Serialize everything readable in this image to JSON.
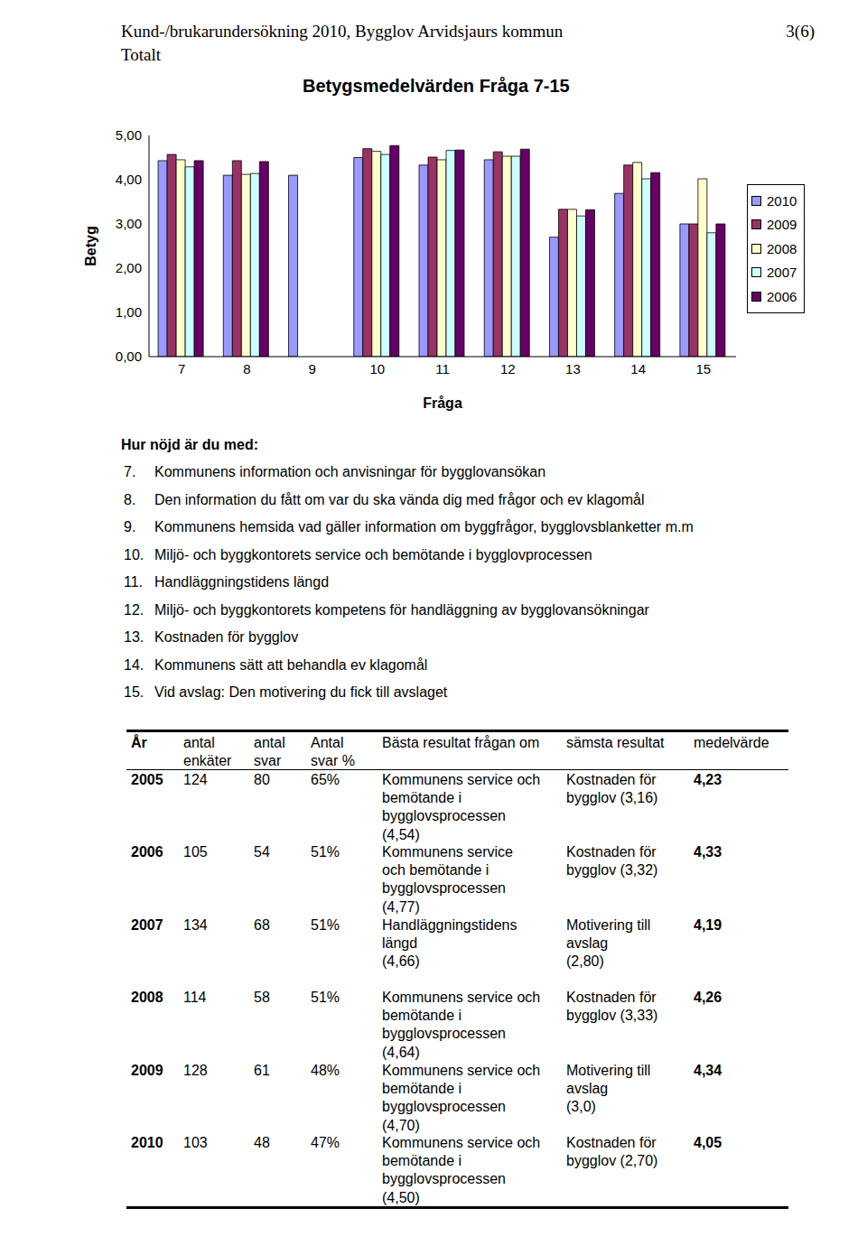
{
  "header": {
    "title": "Kund-/brukarundersökning 2010, Bygglov Arvidsjaurs kommun",
    "subtitle": "Totalt",
    "page": "3(6)"
  },
  "chart_data": {
    "type": "bar",
    "title": "Betygsmedelvärden Fråga 7-15",
    "x_label": "Fråga",
    "y_label": "Betyg",
    "categories": [
      "7",
      "8",
      "9",
      "10",
      "11",
      "12",
      "13",
      "14",
      "15"
    ],
    "ylim": [
      0,
      5
    ],
    "yticks": [
      {
        "value": 0,
        "label": "0,00"
      },
      {
        "value": 1,
        "label": "1,00"
      },
      {
        "value": 2,
        "label": "2,00"
      },
      {
        "value": 3,
        "label": "3,00"
      },
      {
        "value": 4,
        "label": "4,00"
      },
      {
        "value": 5,
        "label": "5,00"
      }
    ],
    "grid": false,
    "legend": "right",
    "series": [
      {
        "name": "2010",
        "color": "#9999ff",
        "values": [
          4.43,
          4.1,
          4.1,
          4.5,
          4.33,
          4.45,
          2.7,
          3.69,
          3.0
        ]
      },
      {
        "name": "2009",
        "color": "#993366",
        "values": [
          4.57,
          4.43,
          null,
          4.7,
          4.51,
          4.63,
          3.33,
          4.33,
          3.0
        ]
      },
      {
        "name": "2008",
        "color": "#ffffcc",
        "values": [
          4.45,
          4.12,
          null,
          4.64,
          4.45,
          4.53,
          3.33,
          4.39,
          4.02
        ]
      },
      {
        "name": "2007",
        "color": "#ccffff",
        "values": [
          4.29,
          4.14,
          null,
          4.57,
          4.66,
          4.53,
          3.18,
          4.02,
          2.8
        ]
      },
      {
        "name": "2006",
        "color": "#660066",
        "values": [
          4.43,
          4.41,
          null,
          4.77,
          4.67,
          4.69,
          3.32,
          4.16,
          3.0
        ]
      }
    ]
  },
  "questions": {
    "heading": "Hur nöjd är du med:",
    "items": [
      {
        "number": "7.",
        "text": "Kommunens information och anvisningar för bygglovansökan"
      },
      {
        "number": "8.",
        "text": "Den information du fått om var du ska vända dig med frågor och ev klagomål"
      },
      {
        "number": "9.",
        "text": "Kommunens hemsida vad gäller information om byggfrågor, bygglovsblanketter m.m"
      },
      {
        "number": "10.",
        "text": "Miljö- och byggkontorets service och bemötande i bygglovprocessen"
      },
      {
        "number": "11.",
        "text": "Handläggningstidens längd"
      },
      {
        "number": "12.",
        "text": "Miljö- och byggkontorets kompetens för handläggning av bygglovansökningar"
      },
      {
        "number": "13.",
        "text": "Kostnaden för bygglov"
      },
      {
        "number": "14.",
        "text": "Kommunens sätt att behandla ev klagomål"
      },
      {
        "number": "15.",
        "text": "Vid avslag: Den motivering du fick till avslaget"
      }
    ]
  },
  "table": {
    "header": [
      [
        "År"
      ],
      [
        "antal",
        "enkäter"
      ],
      [
        "antal",
        "svar"
      ],
      [
        "Antal",
        "svar %"
      ],
      [
        "Bästa resultat frågan om"
      ],
      [
        "sämsta resultat"
      ],
      [
        "medelvärde"
      ]
    ],
    "rows": [
      [
        [
          "2005"
        ],
        [
          "124"
        ],
        [
          "80"
        ],
        [
          "65%"
        ],
        [
          "Kommunens service och",
          "bemötande i",
          "bygglovsprocessen",
          "(4,54)"
        ],
        [
          "Kostnaden för",
          "bygglov (3,16)"
        ],
        [
          "4,23"
        ]
      ],
      [
        [
          "2006"
        ],
        [
          "105"
        ],
        [
          "54"
        ],
        [
          "51%"
        ],
        [
          "Kommunens service",
          "och bemötande i",
          "bygglovsprocessen",
          "(4,77)"
        ],
        [
          "Kostnaden för",
          "bygglov (3,32)"
        ],
        [
          "4,33"
        ]
      ],
      [
        [
          "2007"
        ],
        [
          "134"
        ],
        [
          "68"
        ],
        [
          "51%"
        ],
        [
          "Handläggningstidens",
          "längd",
          "(4,66)"
        ],
        [
          "Motivering till",
          "avslag",
          "(2,80)"
        ],
        [
          "4,19"
        ]
      ],
      [
        [
          "2008"
        ],
        [
          "114"
        ],
        [
          "58"
        ],
        [
          "51%"
        ],
        [
          "Kommunens service och",
          "bemötande i",
          "bygglovsprocessen",
          "(4,64)"
        ],
        [
          "Kostnaden för",
          "bygglov (3,33)"
        ],
        [
          "4,26"
        ]
      ],
      [
        [
          "2009"
        ],
        [
          "128"
        ],
        [
          "61"
        ],
        [
          "48%"
        ],
        [
          "Kommunens service och",
          "bemötande i",
          "bygglovsprocessen",
          "(4,70)"
        ],
        [
          "Motivering till",
          "avslag",
          "(3,0)"
        ],
        [
          "4,34"
        ]
      ],
      [
        [
          "2010"
        ],
        [
          "103"
        ],
        [
          "48"
        ],
        [
          "47%"
        ],
        [
          "Kommunens service och",
          "bemötande i",
          "bygglovsprocessen",
          "(4,50)"
        ],
        [
          "Kostnaden för",
          "bygglov (2,70)"
        ],
        [
          "4,05"
        ]
      ]
    ]
  }
}
